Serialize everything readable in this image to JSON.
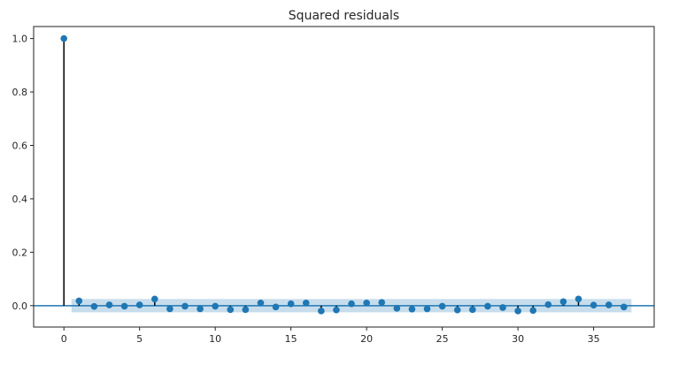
{
  "chart_data": {
    "type": "stem",
    "title": "Squared residuals",
    "xlabel": "",
    "ylabel": "",
    "xlim": [
      -2,
      39
    ],
    "ylim": [
      -0.08,
      1.045
    ],
    "xticks": [
      0,
      5,
      10,
      15,
      20,
      25,
      30,
      35
    ],
    "yticks": [
      0.0,
      0.2,
      0.4,
      0.6,
      0.8,
      1.0
    ],
    "ytick_labels": [
      "0.0",
      "0.2",
      "0.4",
      "0.6",
      "0.8",
      "1.0"
    ],
    "grid": false,
    "confidence_band": {
      "x_start": 0.5,
      "x_end": 37.5,
      "lower": -0.025,
      "upper": 0.025
    },
    "x": [
      0,
      1,
      2,
      3,
      4,
      5,
      6,
      7,
      8,
      9,
      10,
      11,
      12,
      13,
      14,
      15,
      16,
      17,
      18,
      19,
      20,
      21,
      22,
      23,
      24,
      25,
      26,
      27,
      28,
      29,
      30,
      31,
      32,
      33,
      34,
      35,
      36,
      37
    ],
    "values": [
      1.0,
      0.018,
      -0.003,
      0.003,
      -0.002,
      0.003,
      0.025,
      -0.012,
      -0.002,
      -0.012,
      -0.002,
      -0.015,
      -0.015,
      0.01,
      -0.005,
      0.007,
      0.01,
      -0.02,
      -0.016,
      0.007,
      0.01,
      0.012,
      -0.01,
      -0.013,
      -0.012,
      -0.002,
      -0.016,
      -0.015,
      -0.002,
      -0.007,
      -0.02,
      -0.018,
      0.004,
      0.015,
      0.025,
      0.002,
      0.003,
      -0.005
    ],
    "colors": {
      "marker": "#1f77b4",
      "stem": "#000000",
      "band": "#1f77b4",
      "zero_line": "#1f77b4"
    }
  }
}
